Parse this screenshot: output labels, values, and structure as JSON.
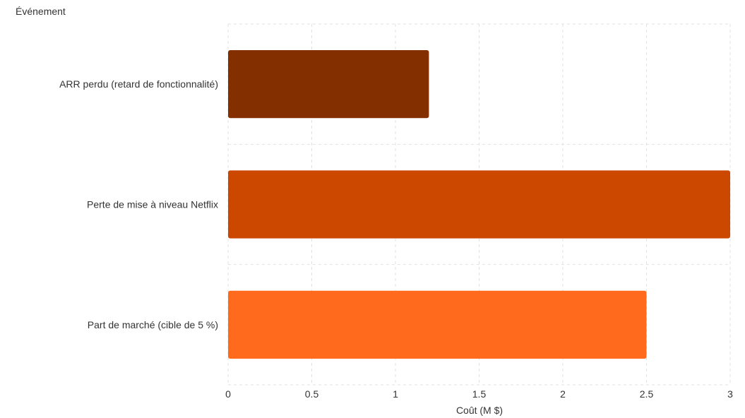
{
  "chart_data": {
    "type": "bar",
    "orientation": "horizontal",
    "categories": [
      "ARR perdu (retard de fonctionnalité)",
      "Perte de mise à niveau Netflix",
      "Part de marché (cible de 5 %)"
    ],
    "values": [
      1.2,
      3.0,
      2.5
    ],
    "colors": [
      "#832f00",
      "#cc4800",
      "#ff6a1c"
    ],
    "xlabel": "Coût (M $)",
    "ylabel": "Événement",
    "xlim": [
      0,
      3
    ],
    "xticks": [
      0,
      0.5,
      1,
      1.5,
      2,
      2.5,
      3
    ],
    "xtick_labels": [
      "0",
      "0.5",
      "1",
      "1.5",
      "2",
      "2.5",
      "3"
    ],
    "grid": true
  }
}
